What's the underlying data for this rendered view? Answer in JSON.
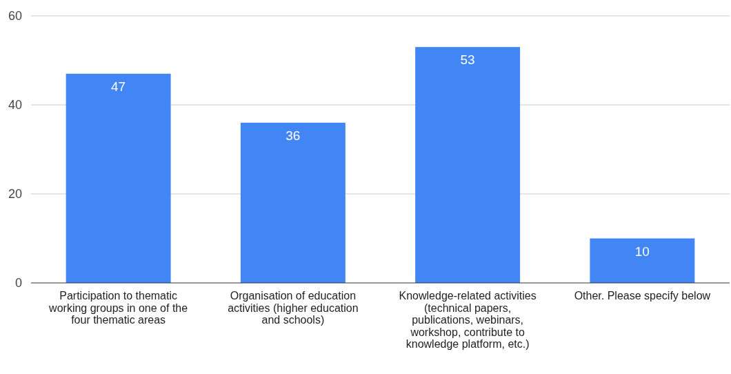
{
  "chart_data": {
    "type": "bar",
    "categories": [
      "Participation to thematic working groups in one of the four thematic areas",
      "Organisation of education activities (higher education and schools)",
      "Knowledge-related activities (technical papers, publications, webinars, workshop, contribute to knowledge platform, etc.)",
      "Other. Please specify below"
    ],
    "values": [
      47,
      36,
      53,
      10
    ],
    "color": "#4285f4",
    "ylim": [
      0,
      60
    ],
    "yticks": [
      0,
      20,
      40,
      60
    ],
    "grid": "y",
    "data_labels": true
  }
}
